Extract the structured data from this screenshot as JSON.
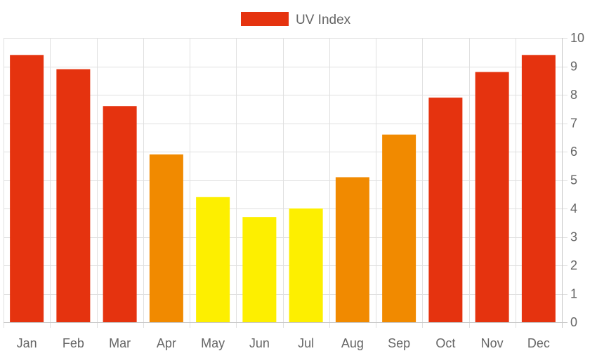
{
  "chart_data": {
    "type": "bar",
    "categories": [
      "Jan",
      "Feb",
      "Mar",
      "Apr",
      "May",
      "Jun",
      "Jul",
      "Aug",
      "Sep",
      "Oct",
      "Nov",
      "Dec"
    ],
    "series": [
      {
        "name": "UV Index",
        "values": [
          9.4,
          8.9,
          7.6,
          5.9,
          4.4,
          3.7,
          4.0,
          5.1,
          6.6,
          7.9,
          8.8,
          9.4
        ]
      }
    ],
    "bar_colors": [
      "#e5330f",
      "#e5330f",
      "#e5330f",
      "#f18a00",
      "#fdef00",
      "#fdef00",
      "#fdef00",
      "#f18a00",
      "#f18a00",
      "#e5330f",
      "#e5330f",
      "#e5330f"
    ],
    "legend": {
      "label": "UV Index",
      "color": "#e5330f",
      "position": "top"
    },
    "y_axis": {
      "position": "right",
      "ticks": [
        0,
        1,
        2,
        3,
        4,
        5,
        6,
        7,
        8,
        9,
        10
      ]
    },
    "ylim": [
      0,
      10
    ],
    "grid": true
  }
}
